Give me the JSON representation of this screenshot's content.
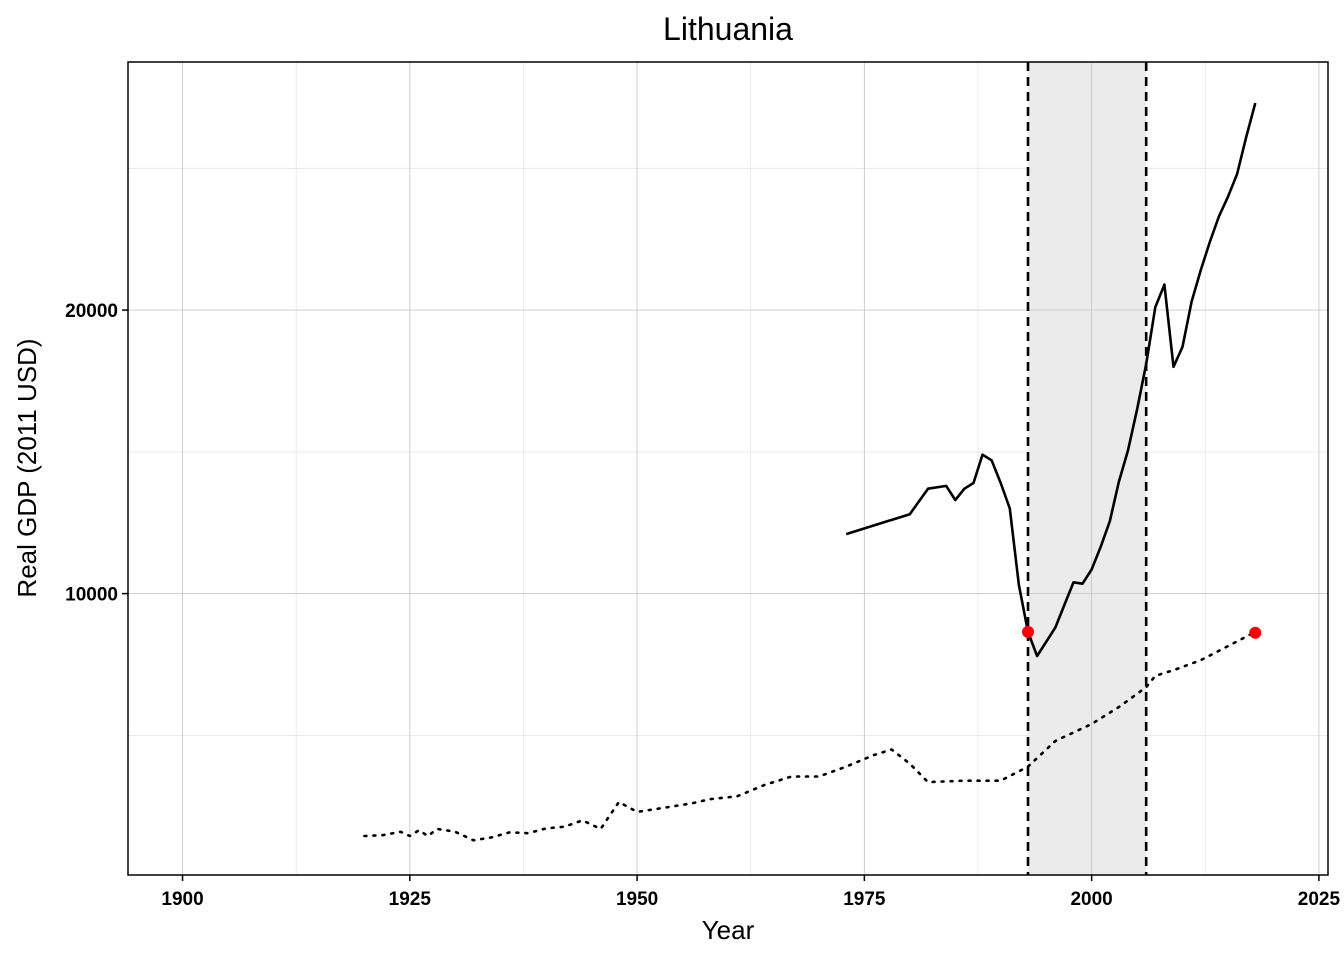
{
  "chart_data": {
    "type": "line",
    "title": "Lithuania",
    "xlabel": "Year",
    "ylabel": "Real GDP (2011 USD)",
    "xlim": [
      1894,
      2026
    ],
    "ylim": [
      75,
      28750
    ],
    "x_ticks": [
      1900,
      1925,
      1950,
      1975,
      2000,
      2025
    ],
    "y_ticks": [
      10000,
      20000
    ],
    "grid": true,
    "legend": "none",
    "shaded_region": {
      "x_start": 1993,
      "x_end": 2006,
      "color": "#ebebeb"
    },
    "vertical_lines": [
      1993,
      2006
    ],
    "series": [
      {
        "style": "solid",
        "color": "#000000",
        "x": [
          1973,
          1980,
          1982,
          1984,
          1985,
          1986,
          1987,
          1988,
          1989,
          1990,
          1991,
          1992,
          1993,
          1994,
          1995,
          1996,
          1997,
          1998,
          1999,
          2000,
          2001,
          2002,
          2003,
          2004,
          2005,
          2006,
          2007,
          2008,
          2009,
          2010,
          2011,
          2012,
          2013,
          2014,
          2015,
          2016,
          2017,
          2018
        ],
        "y": [
          12100,
          12800,
          13700,
          13800,
          13300,
          13700,
          13900,
          14900,
          14700,
          13900,
          13000,
          10300,
          8650,
          7800,
          8300,
          8800,
          9600,
          10400,
          10350,
          10850,
          11650,
          12550,
          13950,
          15050,
          16500,
          18100,
          20100,
          20900,
          18000,
          18700,
          20300,
          21400,
          22400,
          23300,
          24000,
          24800,
          26100,
          27300
        ]
      },
      {
        "style": "dotted",
        "color": "#000000",
        "x": [
          1920,
          1922,
          1924,
          1925,
          1926,
          1927,
          1928,
          1930,
          1932,
          1934,
          1936,
          1938,
          1940,
          1942,
          1944,
          1946,
          1948,
          1950,
          1953,
          1956,
          1958,
          1961,
          1964,
          1967,
          1970,
          1973,
          1976,
          1978,
          1980,
          1982,
          1986,
          1990,
          1993,
          1996,
          2000,
          2003,
          2006,
          2007,
          2009,
          2012,
          2015,
          2018
        ],
        "y": [
          1450,
          1480,
          1600,
          1450,
          1650,
          1450,
          1700,
          1600,
          1300,
          1400,
          1580,
          1550,
          1720,
          1780,
          2000,
          1700,
          2650,
          2300,
          2450,
          2600,
          2750,
          2850,
          3250,
          3550,
          3550,
          3900,
          4300,
          4500,
          4000,
          3350,
          3400,
          3400,
          3900,
          4800,
          5400,
          6000,
          6700,
          7100,
          7300,
          7650,
          8150,
          8650
        ]
      }
    ],
    "points": [
      {
        "x": 1993,
        "y": 8650,
        "color": "#ff0000"
      },
      {
        "x": 2018,
        "y": 8620,
        "color": "#ff0000"
      }
    ]
  }
}
